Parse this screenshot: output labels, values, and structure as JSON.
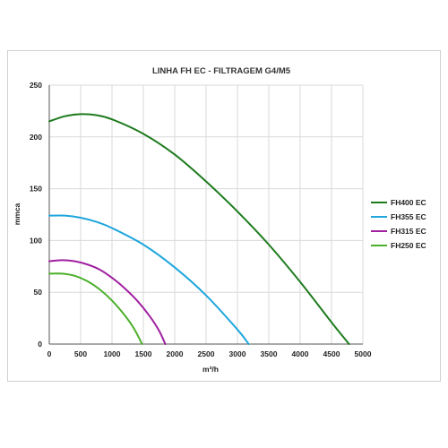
{
  "chart_data": {
    "type": "line",
    "title": "LINHA FH EC - FILTRAGEM G4/M5",
    "xlabel": "m³/h",
    "ylabel": "mmca",
    "xlim": [
      0,
      5000
    ],
    "ylim": [
      0,
      250
    ],
    "xticks": [
      "0",
      "500",
      "1000",
      "1500",
      "2000",
      "2500",
      "3000",
      "3500",
      "4000",
      "4500",
      "5000"
    ],
    "yticks": [
      "0",
      "50",
      "100",
      "150",
      "200",
      "250"
    ],
    "grid": true,
    "legend_position": "right",
    "series": [
      {
        "name": "FH400 EC",
        "color": "#1e7b1e",
        "x": [
          0,
          250,
          500,
          750,
          1000,
          1500,
          2000,
          2500,
          3000,
          3500,
          4000,
          4500,
          4780
        ],
        "y": [
          215,
          220,
          222,
          221,
          217,
          203,
          183,
          157,
          128,
          96,
          60,
          21,
          0
        ]
      },
      {
        "name": "FH355 EC",
        "color": "#1fa6dd",
        "x": [
          0,
          250,
          500,
          750,
          1000,
          1500,
          2000,
          2500,
          3000,
          3180
        ],
        "y": [
          124,
          124,
          122,
          118,
          112,
          96,
          74,
          47,
          14,
          0
        ]
      },
      {
        "name": "FH315 EC",
        "color": "#a020a0",
        "x": [
          0,
          200,
          400,
          600,
          800,
          1000,
          1200,
          1400,
          1600,
          1750,
          1850
        ],
        "y": [
          80,
          81,
          80,
          77,
          72,
          64,
          54,
          42,
          27,
          13,
          0
        ]
      },
      {
        "name": "FH250 EC",
        "color": "#4caf2a",
        "x": [
          0,
          200,
          400,
          600,
          800,
          1000,
          1200,
          1350,
          1480
        ],
        "y": [
          68,
          68,
          66,
          61,
          53,
          42,
          28,
          15,
          0
        ]
      }
    ]
  }
}
